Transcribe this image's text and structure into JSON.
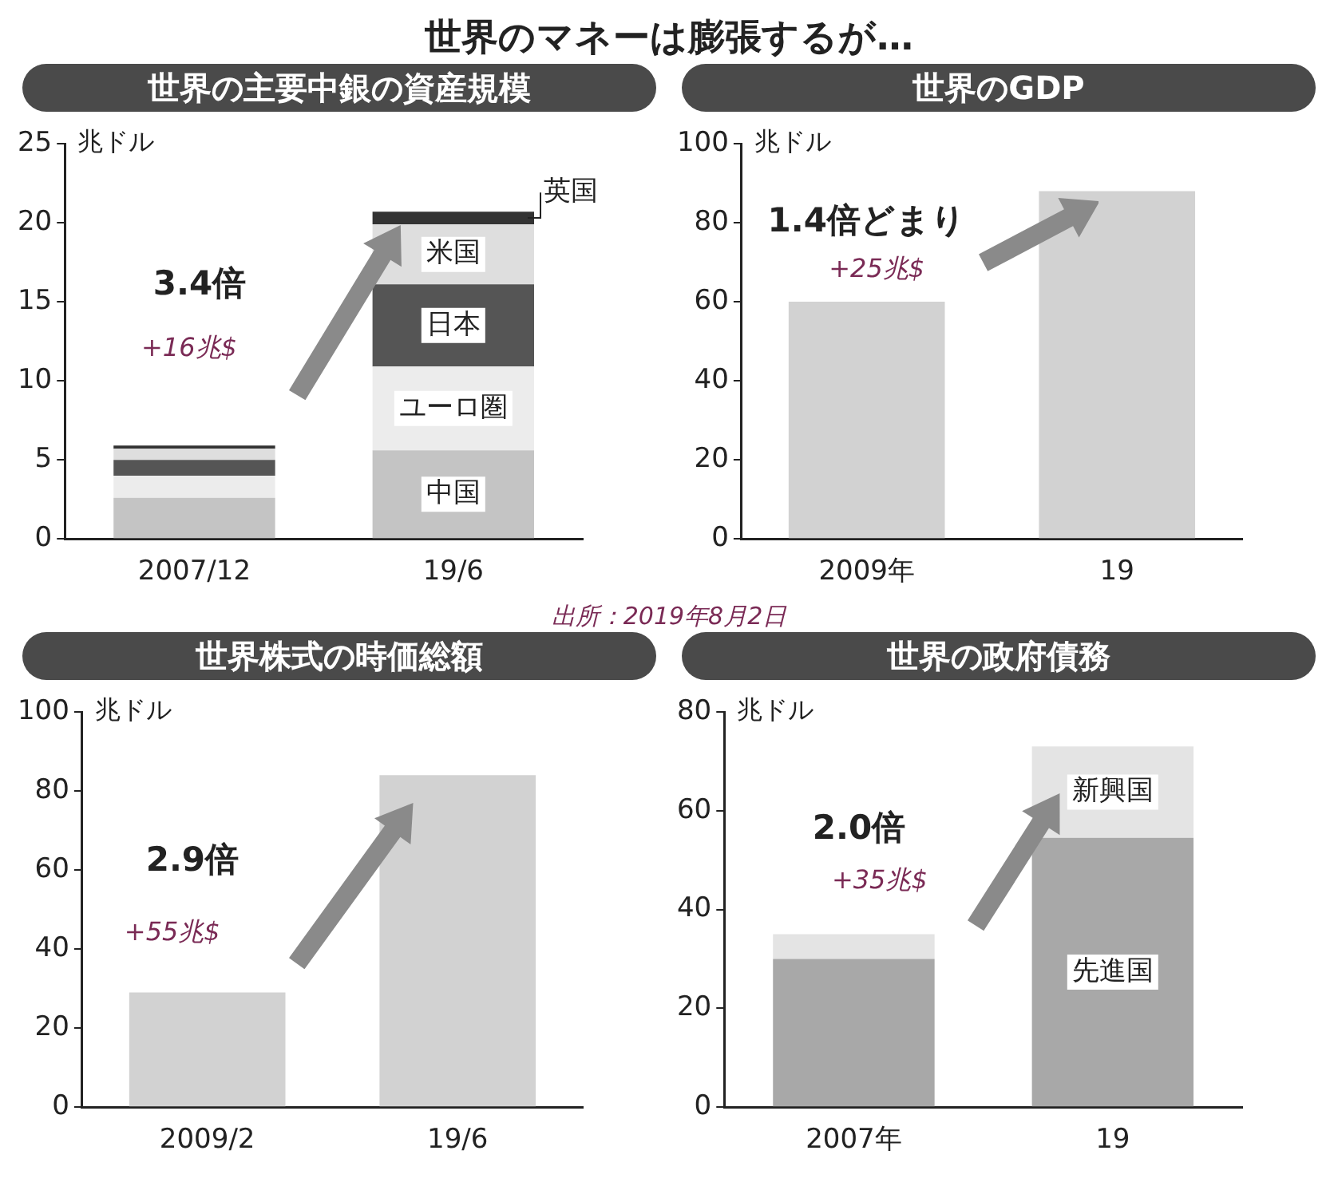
{
  "chart_data": [
    {
      "type": "other",
      "title": "世界のマネーは膨張するが…",
      "annotations": [
        "出所：2019年8月2日"
      ]
    },
    {
      "type": "bar",
      "title": "世界の主要中銀の資産規模",
      "ylabel": "兆ドル",
      "categories": [
        "2007/12",
        "19/6"
      ],
      "stacked": true,
      "ylim": [
        0,
        25
      ],
      "yticks": [
        0,
        5,
        10,
        15,
        20,
        25
      ],
      "annotations": [
        "3.4倍",
        "+16兆$"
      ],
      "series": [
        {
          "name": "中国",
          "color": "#c4c4c4",
          "values": [
            2.6,
            5.6
          ]
        },
        {
          "name": "ユーロ圏",
          "color": "#ececec",
          "values": [
            1.4,
            5.3
          ]
        },
        {
          "name": "日本",
          "color": "#555555",
          "values": [
            1.0,
            5.2
          ]
        },
        {
          "name": "米国",
          "color": "#dedede",
          "values": [
            0.7,
            3.8
          ]
        },
        {
          "name": "英国",
          "color": "#333333",
          "values": [
            0.2,
            0.8
          ]
        }
      ]
    },
    {
      "type": "bar",
      "title": "世界のGDP",
      "ylabel": "兆ドル",
      "categories": [
        "2009年",
        "19"
      ],
      "ylim": [
        0,
        100
      ],
      "yticks": [
        0,
        20,
        40,
        60,
        80,
        100
      ],
      "annotations": [
        "1.4倍どまり",
        "+25兆$"
      ],
      "series": [
        {
          "color": "#d2d2d2",
          "values": [
            60,
            88
          ]
        }
      ]
    },
    {
      "type": "bar",
      "title": "世界株式の時価総額",
      "ylabel": "兆ドル",
      "categories": [
        "2009/2",
        "19/6"
      ],
      "ylim": [
        0,
        100
      ],
      "yticks": [
        0,
        20,
        40,
        60,
        80,
        100
      ],
      "annotations": [
        "2.9倍",
        "+55兆$"
      ],
      "series": [
        {
          "color": "#d2d2d2",
          "values": [
            29,
            84
          ]
        }
      ]
    },
    {
      "type": "bar",
      "title": "世界の政府債務",
      "ylabel": "兆ドル",
      "categories": [
        "2007年",
        "19"
      ],
      "stacked": true,
      "ylim": [
        0,
        80
      ],
      "yticks": [
        0,
        20,
        40,
        60,
        80
      ],
      "annotations": [
        "2.0倍",
        "+35兆$"
      ],
      "series": [
        {
          "name": "先進国",
          "color": "#a8a8a8",
          "values": [
            30,
            54.5
          ]
        },
        {
          "name": "新興国",
          "color": "#e4e4e4",
          "values": [
            5,
            18.5
          ]
        }
      ]
    }
  ]
}
